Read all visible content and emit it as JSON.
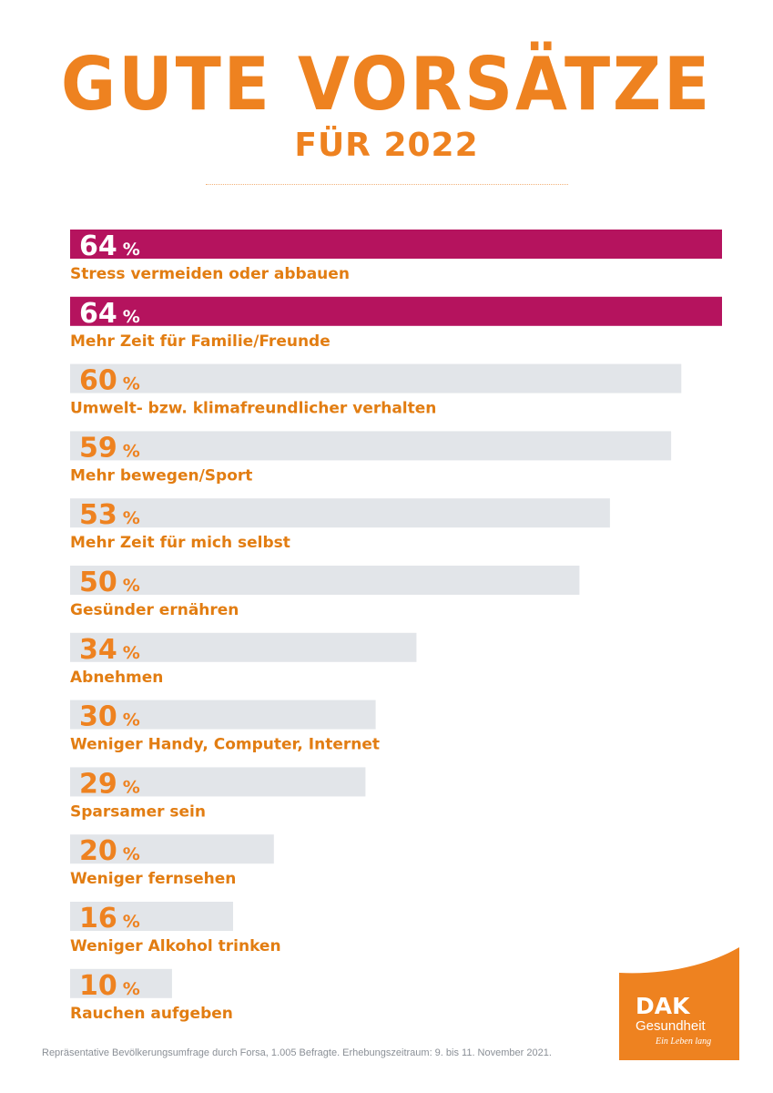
{
  "colors": {
    "accent_orange": "#ee8220",
    "highlight_magenta": "#b5135e",
    "bar_grey": "#e2e5e9",
    "label_orange": "#e27d12"
  },
  "title": "GUTE VORSÄTZE",
  "subtitle": "FÜR 2022",
  "chart_data": {
    "type": "bar",
    "orientation": "horizontal",
    "title": "GUTE VORSÄTZE FÜR 2022",
    "unit": "%",
    "xlim": [
      0,
      64
    ],
    "categories": [
      "Stress vermeiden oder abbauen",
      "Mehr Zeit für Familie/Freunde",
      "Umwelt- bzw. klimafreundlicher verhalten",
      "Mehr bewegen/Sport",
      "Mehr Zeit für mich selbst",
      "Gesünder ernähren",
      "Abnehmen",
      "Weniger Handy, Computer, Internet",
      "Sparsamer sein",
      "Weniger fernsehen",
      "Weniger Alkohol trinken",
      "Rauchen aufgeben"
    ],
    "values": [
      64,
      64,
      60,
      59,
      53,
      50,
      34,
      30,
      29,
      20,
      16,
      10
    ],
    "highlighted": [
      true,
      true,
      false,
      false,
      false,
      false,
      false,
      false,
      false,
      false,
      false,
      false
    ]
  },
  "footnote": "Repräsentative Bevölkerungsumfrage durch Forsa, 1.005 Befragte. Erhebungszeitraum: 9. bis 11. November 2021.",
  "logo": {
    "brand": "DAK",
    "name": "Gesundheit",
    "slogan": "Ein Leben lang"
  }
}
